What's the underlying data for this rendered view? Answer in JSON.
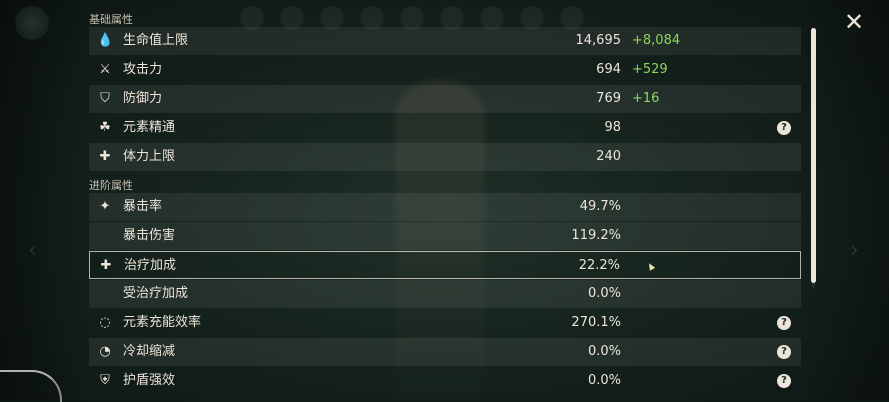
{
  "sections": {
    "basic": "基础属性",
    "advanced": "进阶属性"
  },
  "stats": [
    {
      "icon": "hp-drop-icon",
      "glyph": "💧",
      "label": "生命值上限",
      "value": "14,695",
      "bonus": "+8,084",
      "help": false
    },
    {
      "icon": "sword-icon",
      "glyph": "⚔",
      "label": "攻击力",
      "value": "694",
      "bonus": "+529",
      "help": false
    },
    {
      "icon": "shield-icon",
      "glyph": "⛉",
      "label": "防御力",
      "value": "769",
      "bonus": "+16",
      "help": false
    },
    {
      "icon": "elemental-mastery-icon",
      "glyph": "☘",
      "label": "元素精通",
      "value": "98",
      "bonus": "",
      "help": true
    },
    {
      "icon": "stamina-icon",
      "glyph": "✚",
      "label": "体力上限",
      "value": "240",
      "bonus": "",
      "help": false
    },
    {
      "icon": "crit-rate-icon",
      "glyph": "✦",
      "label": "暴击率",
      "value": "49.7%",
      "bonus": "",
      "help": false
    },
    {
      "icon": "",
      "glyph": "",
      "label": "暴击伤害",
      "value": "119.2%",
      "bonus": "",
      "help": false
    },
    {
      "icon": "healing-cross-icon",
      "glyph": "✚",
      "label": "治疗加成",
      "value": "22.2%",
      "bonus": "",
      "help": false
    },
    {
      "icon": "",
      "glyph": "",
      "label": "受治疗加成",
      "value": "0.0%",
      "bonus": "",
      "help": false
    },
    {
      "icon": "energy-recharge-icon",
      "glyph": "◌",
      "label": "元素充能效率",
      "value": "270.1%",
      "bonus": "",
      "help": true
    },
    {
      "icon": "cooldown-icon",
      "glyph": "◔",
      "label": "冷却缩减",
      "value": "0.0%",
      "bonus": "",
      "help": true
    },
    {
      "icon": "shield-strength-icon",
      "glyph": "⛨",
      "label": "护盾强效",
      "value": "0.0%",
      "bonus": "",
      "help": true
    }
  ],
  "close_glyph": "✕",
  "help_glyph": "?"
}
